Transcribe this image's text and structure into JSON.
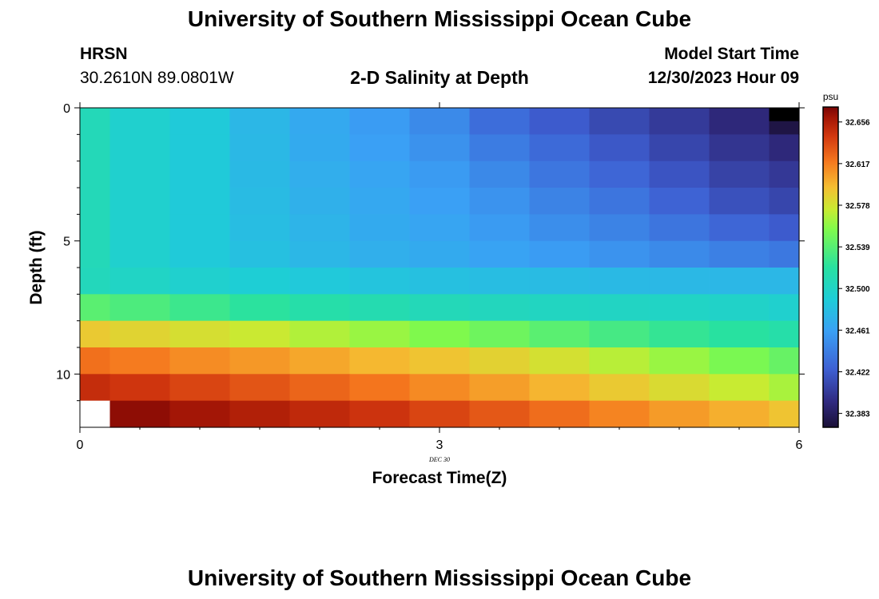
{
  "header": {
    "title": "University of Southern Mississippi Ocean Cube",
    "station": "HRSN",
    "coords": "30.2610N  89.0801W",
    "plot_title": "2-D Salinity at Depth",
    "model_label": "Model Start Time",
    "model_time": "12/30/2023 Hour 09"
  },
  "footer": {
    "title": "University of Southern Mississippi Ocean Cube"
  },
  "chart_data": {
    "type": "heatmap",
    "xlabel": "Forecast Time(Z)",
    "ylabel": "Depth (ft)",
    "x_sublabel": "DEC 30",
    "x_ticks": [
      "0",
      "3",
      "6"
    ],
    "y_ticks": [
      "0",
      "5",
      "10"
    ],
    "xlim": [
      0,
      6
    ],
    "ylim": [
      0,
      12
    ],
    "y_inverted": true,
    "colorbar": {
      "unit": "psu",
      "ticks": [
        "32.656",
        "32.617",
        "32.578",
        "32.539",
        "32.500",
        "32.461",
        "32.422",
        "32.383"
      ],
      "range": [
        32.37,
        32.67
      ]
    },
    "x_edges": [
      0,
      0.25,
      0.75,
      1.25,
      1.75,
      2.25,
      2.75,
      3.25,
      3.75,
      4.25,
      4.75,
      5.25,
      5.75,
      6
    ],
    "y_edges": [
      0,
      1,
      2,
      3,
      4,
      5,
      6,
      7,
      8,
      9,
      10,
      11,
      12
    ],
    "values": [
      [
        32.507,
        32.495,
        32.488,
        32.475,
        32.466,
        32.458,
        32.448,
        32.432,
        32.422,
        32.412,
        32.403,
        32.392,
        32.375
      ],
      [
        32.507,
        32.495,
        32.488,
        32.476,
        32.467,
        32.46,
        32.452,
        32.44,
        32.43,
        32.42,
        32.41,
        32.4,
        32.392
      ],
      [
        32.507,
        32.495,
        32.488,
        32.477,
        32.469,
        32.463,
        32.457,
        32.447,
        32.437,
        32.428,
        32.418,
        32.408,
        32.402
      ],
      [
        32.507,
        32.495,
        32.488,
        32.478,
        32.471,
        32.465,
        32.46,
        32.453,
        32.444,
        32.436,
        32.426,
        32.416,
        32.41
      ],
      [
        32.507,
        32.495,
        32.488,
        32.479,
        32.473,
        32.467,
        32.463,
        32.457,
        32.45,
        32.444,
        32.436,
        32.428,
        32.422
      ],
      [
        32.507,
        32.495,
        32.488,
        32.481,
        32.475,
        32.47,
        32.467,
        32.462,
        32.458,
        32.453,
        32.448,
        32.442,
        32.438
      ],
      [
        32.505,
        32.5,
        32.495,
        32.491,
        32.487,
        32.484,
        32.481,
        32.479,
        32.478,
        32.477,
        32.476,
        32.475,
        32.475
      ],
      [
        32.54,
        32.535,
        32.528,
        32.521,
        32.515,
        32.511,
        32.507,
        32.504,
        32.502,
        32.501,
        32.5,
        32.498,
        32.495
      ],
      [
        32.59,
        32.585,
        32.58,
        32.575,
        32.568,
        32.562,
        32.555,
        32.548,
        32.54,
        32.532,
        32.525,
        32.52,
        32.515
      ],
      [
        32.622,
        32.618,
        32.612,
        32.608,
        32.603,
        32.597,
        32.592,
        32.586,
        32.579,
        32.57,
        32.562,
        32.553,
        32.545
      ],
      [
        32.648,
        32.644,
        32.638,
        32.632,
        32.626,
        32.62,
        32.613,
        32.606,
        32.598,
        32.59,
        32.582,
        32.574,
        32.566
      ],
      [
        null,
        32.665,
        32.66,
        32.655,
        32.65,
        32.645,
        32.638,
        32.631,
        32.623,
        32.615,
        32.607,
        32.6,
        32.592
      ]
    ]
  }
}
